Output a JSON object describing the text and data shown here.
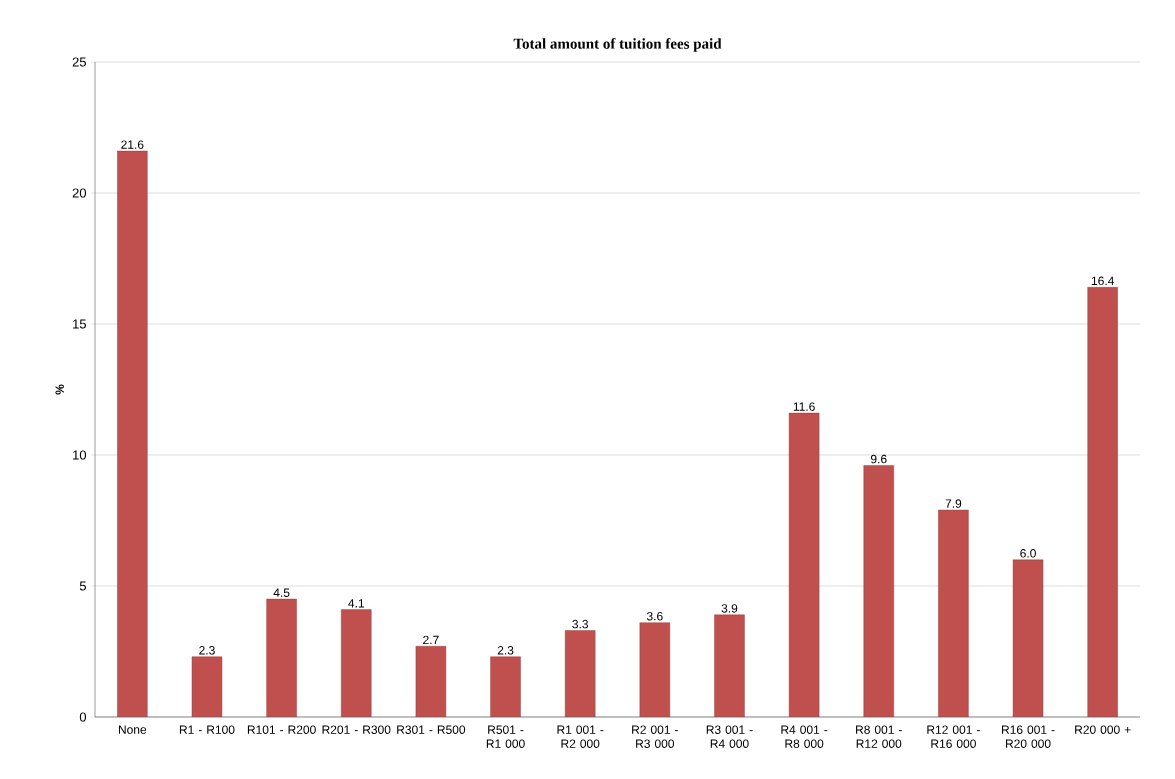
{
  "chart_data": {
    "type": "bar",
    "title": "Total amount of tuition fees paid",
    "ylabel": "%",
    "categories": [
      "None",
      "R1 - R100",
      "R101 - R200",
      "R201 - R300",
      "R301 - R500",
      "R501 - R1 000",
      "R1 001 - R2 000",
      "R2 001 - R3 000",
      "R3 001 - R4 000",
      "R4 001 - R8 000",
      "R8 001 - R12 000",
      "R12 001 - R16 000",
      "R16 001 - R20 000",
      "R20 000 +"
    ],
    "values": [
      21.6,
      2.3,
      4.5,
      4.1,
      2.7,
      2.3,
      3.3,
      3.6,
      3.9,
      11.6,
      9.6,
      7.9,
      6.0,
      16.4
    ],
    "value_labels": [
      "21.6",
      "2.3",
      "4.5",
      "4.1",
      "2.7",
      "2.3",
      "3.3",
      "3.6",
      "3.9",
      "11.6",
      "9.6",
      "7.9",
      "6.0",
      "16.4"
    ],
    "color": "#c0504d",
    "ylim": [
      0,
      25
    ],
    "yticks": [
      0,
      5,
      10,
      15,
      20,
      25
    ],
    "grid": "y"
  }
}
